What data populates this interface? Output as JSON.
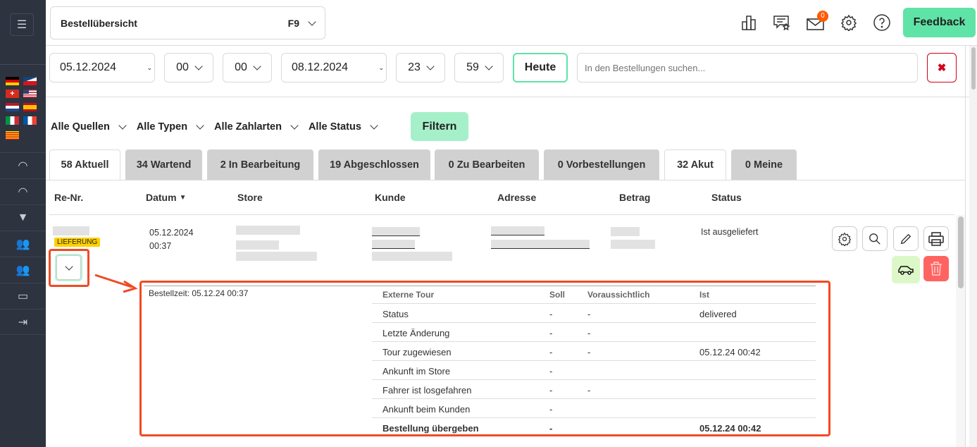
{
  "header": {
    "title": "Bestellübersicht",
    "shortcut": "F9",
    "mail_badge": "0",
    "feedback_label": "Feedback"
  },
  "date_filter": {
    "from_date": "05.12.2024",
    "from_hour": "00",
    "from_minute": "00",
    "to_date": "08.12.2024",
    "to_hour": "23",
    "to_minute": "59",
    "today_label": "Heute",
    "search_placeholder": "In den Bestellungen suchen...",
    "clear_icon": "close-icon"
  },
  "filters": {
    "sources": "Alle Quellen",
    "types": "Alle Typen",
    "payment": "Alle Zahlarten",
    "status": "Alle Status",
    "filter_label": "Filtern"
  },
  "tabs": [
    {
      "label": "58 Aktuell",
      "active": true
    },
    {
      "label": "34 Wartend"
    },
    {
      "label": "2  In Bearbeitung"
    },
    {
      "label": "19  Abgeschlossen"
    },
    {
      "label": "0  Zu Bearbeiten"
    },
    {
      "label": "0  Vorbestellungen"
    },
    {
      "label": "32 Akut",
      "active": true
    },
    {
      "label": "0  Meine"
    }
  ],
  "table": {
    "columns": [
      "Re-Nr.",
      "Datum",
      "Store",
      "Kunde",
      "Adresse",
      "Betrag",
      "Status"
    ],
    "rows": [
      {
        "badge": "LIEFERUNG",
        "date": "05.12.2024",
        "time": "00:37",
        "status": "Ist ausgeliefert"
      }
    ]
  },
  "details": {
    "order_time": "Bestellzeit: 05.12.24 00:37",
    "columns": [
      "Externe Tour",
      "Soll",
      "Voraussichtlich",
      "Ist"
    ],
    "rows": [
      [
        "Status",
        "-",
        "-",
        "delivered"
      ],
      [
        "Letzte Änderung",
        "-",
        "-",
        ""
      ],
      [
        "Tour zugewiesen",
        "-",
        "-",
        "05.12.24 00:42"
      ],
      [
        "Ankunft im Store",
        "-",
        "",
        ""
      ],
      [
        "Fahrer ist losgefahren",
        "-",
        "-",
        ""
      ],
      [
        "Ankunft beim Kunden",
        "-",
        "",
        ""
      ],
      [
        "Bestellung übergeben",
        "-",
        "",
        "05.12.24 00:42"
      ]
    ]
  },
  "colors": {
    "sidebar": "#2d333f",
    "accent_green": "#5fe3a7",
    "badge_yellow": "#ffd000",
    "annotation_red": "#f04a23",
    "delete_red": "#ff6361",
    "delivery_green": "#ddf8c8"
  }
}
